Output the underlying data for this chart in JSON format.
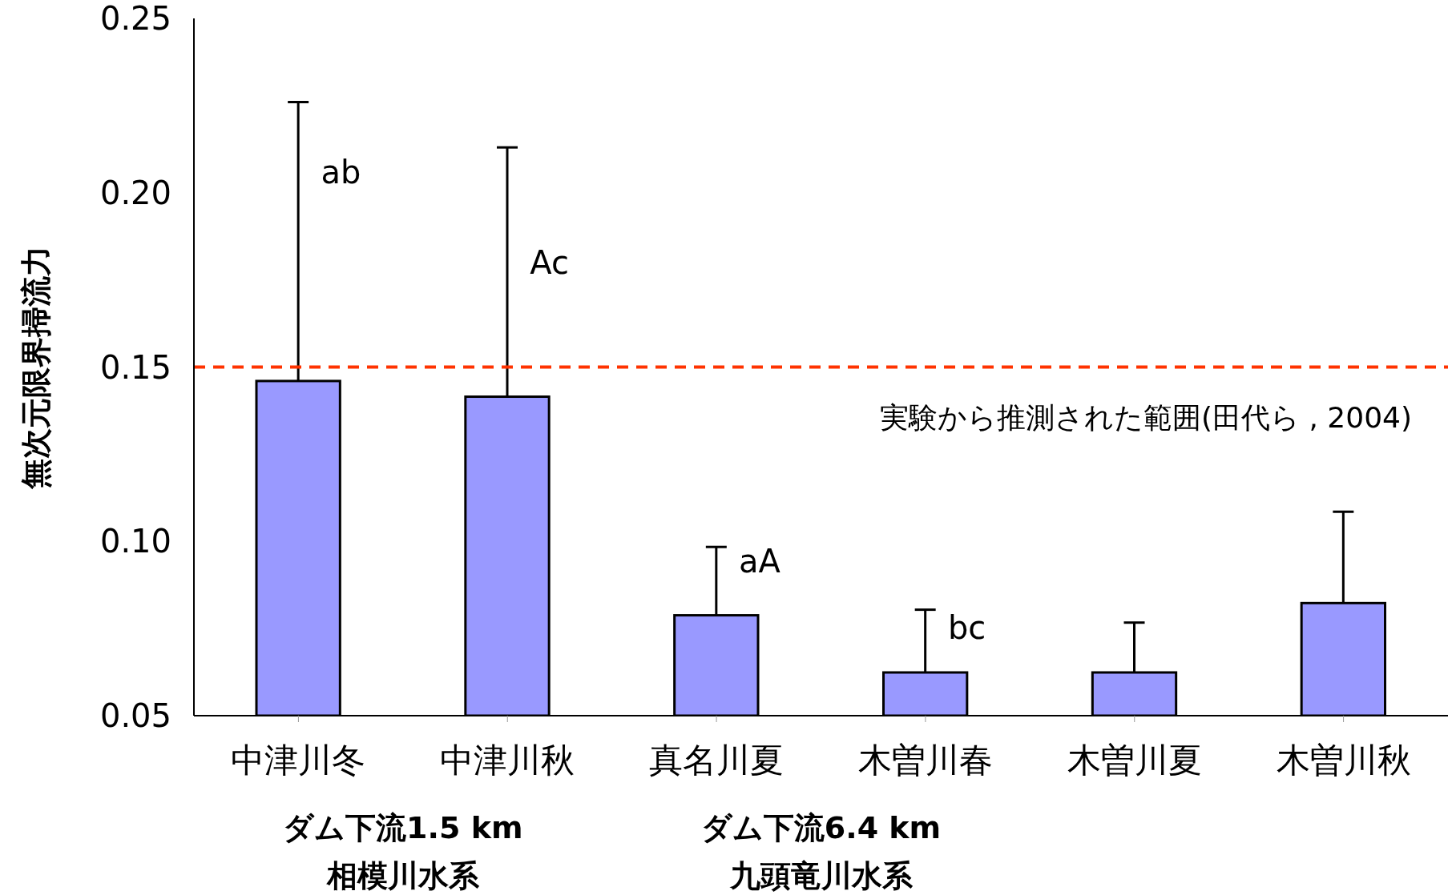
{
  "chart_data": {
    "type": "bar",
    "ylabel": "無次元限界掃流力",
    "categories": [
      "中津川冬",
      "中津川秋",
      "真名川夏",
      "木曽川春",
      "木曽川夏",
      "木曽川秋"
    ],
    "values": [
      0.146,
      0.1415,
      0.0788,
      0.0624,
      0.0624,
      0.0823
    ],
    "color": "#9999ff",
    "errors": [
      [
        0.146,
        0.226
      ],
      [
        0.1415,
        0.213
      ],
      [
        0.0788,
        0.0984
      ],
      [
        0.0624,
        0.0804
      ],
      [
        0.0624,
        0.0767
      ],
      [
        0.0823,
        0.1085
      ]
    ],
    "ylim": [
      0.05,
      0.25
    ],
    "yticks": [
      {
        "value": 0.05,
        "label": "0.05"
      },
      {
        "value": 0.1,
        "label": "0.10"
      },
      {
        "value": 0.15,
        "label": "0.15"
      },
      {
        "value": 0.2,
        "label": "0.20"
      },
      {
        "value": 0.25,
        "label": "0.25"
      }
    ],
    "grid": false,
    "legend": false,
    "ref_lines": [
      {
        "axis": "y",
        "value": 0.15,
        "label": "実験から推測された範囲(田代ら , 2004)",
        "color": "#ff3300",
        "line_style": "dashed"
      }
    ],
    "annotations": [
      {
        "text": "ab",
        "x": "中津川冬",
        "y": 0.206
      },
      {
        "text": "Ac",
        "x": "中津川秋",
        "y": 0.18
      },
      {
        "text": "aA",
        "x": "真名川夏",
        "y": 0.0944
      },
      {
        "text": "bc",
        "x": "木曽川春",
        "y": 0.0754
      },
      "ダム下流1.5 km\n相模川水系",
      "ダム下流6.4 km\n九頭竜川水系"
    ]
  }
}
